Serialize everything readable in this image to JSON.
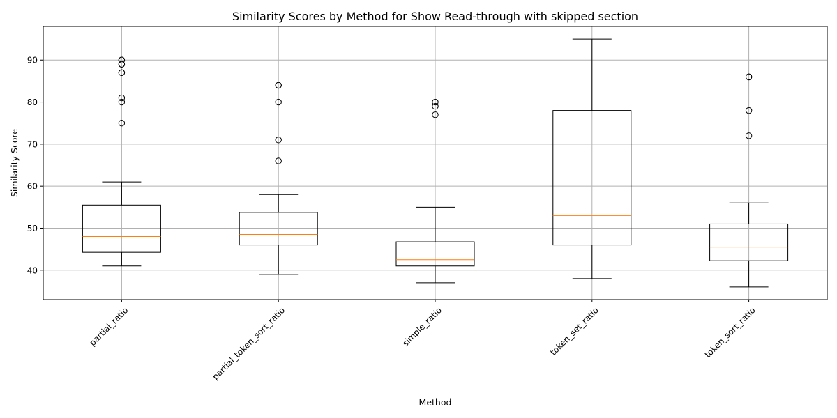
{
  "chart_data": {
    "type": "box",
    "title": "Similarity Scores by Method for Show Read-through with skipped section",
    "xlabel": "Method",
    "ylabel": "Similarity Score",
    "ylim": [
      33,
      98
    ],
    "yticks": [
      40,
      50,
      60,
      70,
      80,
      90
    ],
    "grid": true,
    "categories": [
      "partial_ratio",
      "partial_token_sort_ratio",
      "simple_ratio",
      "token_set_ratio",
      "token_sort_ratio"
    ],
    "boxes": [
      {
        "whisker_low": 41,
        "q1": 44.25,
        "median": 48,
        "q3": 55.5,
        "whisker_high": 61,
        "outliers": [
          75,
          80,
          81,
          87,
          87,
          89,
          89,
          90,
          90
        ]
      },
      {
        "whisker_low": 39,
        "q1": 46,
        "median": 48.5,
        "q3": 53.75,
        "whisker_high": 58,
        "outliers": [
          66,
          71,
          80,
          84,
          84
        ]
      },
      {
        "whisker_low": 37,
        "q1": 41,
        "median": 42.5,
        "q3": 46.75,
        "whisker_high": 55,
        "outliers": [
          77,
          79,
          80
        ]
      },
      {
        "whisker_low": 38,
        "q1": 46,
        "median": 53,
        "q3": 78,
        "whisker_high": 95,
        "outliers": []
      },
      {
        "whisker_low": 36,
        "q1": 42.25,
        "median": 45.5,
        "q3": 51,
        "whisker_high": 56,
        "outliers": [
          72,
          78,
          86,
          86
        ]
      }
    ],
    "colors": {
      "box": "#000000",
      "median": "#ff7f0e",
      "grid": "#b0b0b0",
      "outlier_edge": "#000000"
    }
  }
}
